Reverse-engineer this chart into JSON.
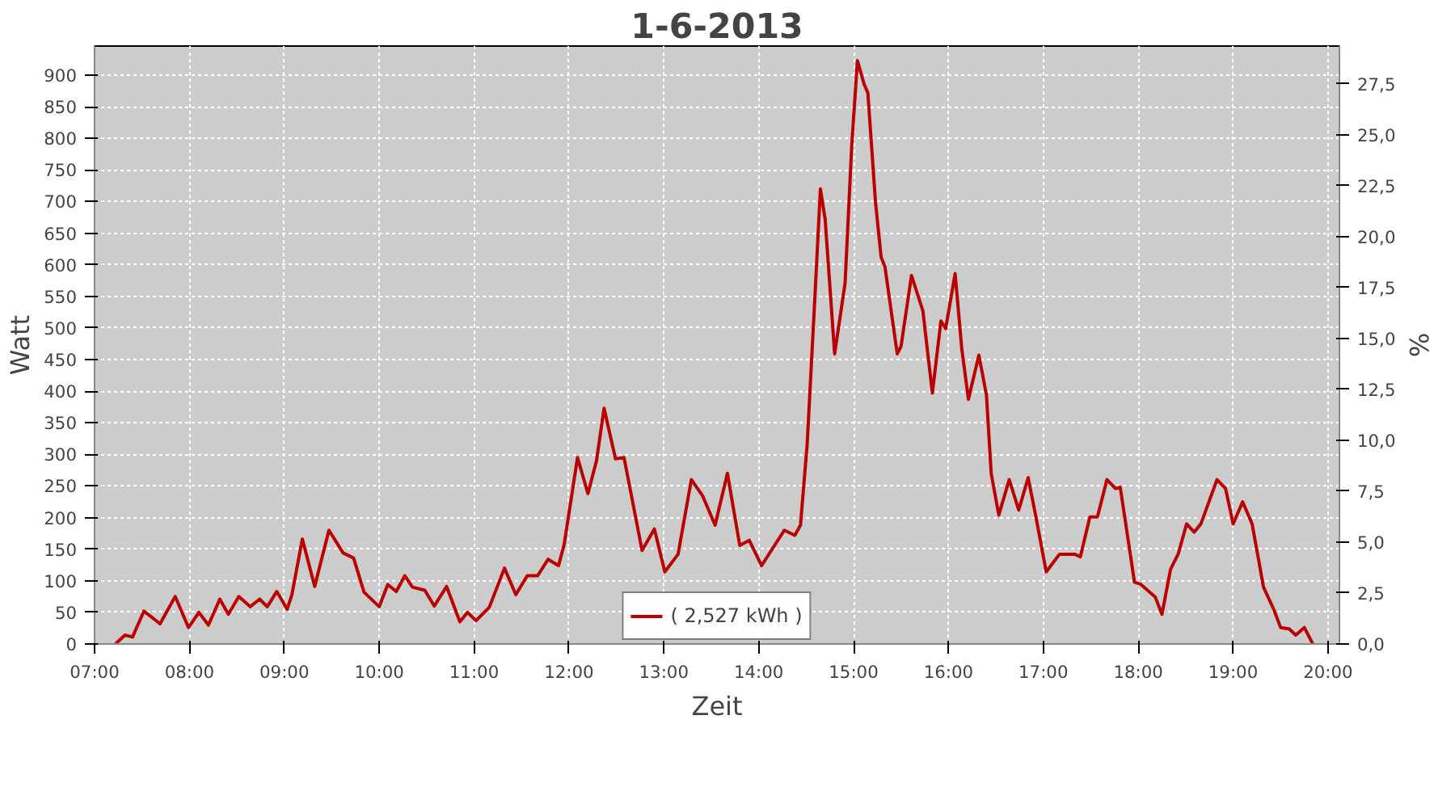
{
  "chart_data": {
    "type": "line",
    "title": "1-6-2013",
    "xlabel": "Zeit",
    "ylabel": "Watt",
    "y2label": "%",
    "x": [
      7.22,
      7.32,
      7.4,
      7.52,
      7.69,
      7.85,
      7.99,
      8.1,
      8.2,
      8.32,
      8.41,
      8.52,
      8.64,
      8.74,
      8.82,
      8.92,
      9.03,
      9.08,
      9.19,
      9.32,
      9.47,
      9.62,
      9.73,
      9.84,
      10.0,
      10.09,
      10.18,
      10.27,
      10.35,
      10.48,
      10.58,
      10.71,
      10.85,
      10.93,
      11.02,
      11.16,
      11.32,
      11.44,
      11.56,
      11.67,
      11.78,
      11.89,
      11.95,
      12.09,
      12.2,
      12.29,
      12.37,
      12.49,
      12.58,
      12.77,
      12.9,
      13.01,
      13.15,
      13.29,
      13.41,
      13.54,
      13.67,
      13.8,
      13.9,
      14.03,
      14.27,
      14.38,
      14.44,
      14.51,
      14.59,
      14.65,
      14.7,
      14.8,
      14.91,
      14.98,
      15.04,
      15.11,
      15.15,
      15.23,
      15.29,
      15.33,
      15.46,
      15.5,
      15.61,
      15.73,
      15.83,
      15.92,
      15.97,
      16.07,
      16.14,
      16.21,
      16.32,
      16.4,
      16.45,
      16.53,
      16.64,
      16.74,
      16.84,
      16.92,
      17.03,
      17.17,
      17.33,
      17.39,
      17.49,
      17.57,
      17.67,
      17.76,
      17.81,
      17.96,
      18.03,
      18.18,
      18.25,
      18.34,
      18.42,
      18.51,
      18.59,
      18.66,
      18.83,
      18.92,
      19.0,
      19.1,
      19.2,
      19.32,
      19.43,
      19.5,
      19.59,
      19.66,
      19.75,
      19.84
    ],
    "series": [
      {
        "name": "( 2,527 kWh )",
        "color": "#bb0000",
        "values": [
          0,
          14,
          11,
          52,
          32,
          75,
          26,
          50,
          30,
          71,
          47,
          75,
          59,
          71,
          59,
          83,
          55,
          78,
          166,
          91,
          180,
          144,
          136,
          82,
          59,
          94,
          83,
          108,
          90,
          85,
          60,
          91,
          35,
          50,
          37,
          58,
          120,
          78,
          108,
          108,
          134,
          124,
          158,
          295,
          238,
          290,
          373,
          293,
          295,
          148,
          182,
          114,
          142,
          260,
          234,
          188,
          270,
          156,
          164,
          124,
          180,
          172,
          188,
          315,
          543,
          720,
          672,
          459,
          571,
          788,
          923,
          886,
          872,
          700,
          612,
          597,
          459,
          471,
          583,
          527,
          397,
          511,
          499,
          586,
          467,
          387,
          457,
          394,
          270,
          204,
          260,
          212,
          263,
          202,
          114,
          142,
          142,
          138,
          201,
          201,
          260,
          246,
          248,
          98,
          94,
          74,
          47,
          118,
          142,
          190,
          177,
          190,
          260,
          246,
          190,
          225,
          190,
          90,
          54,
          26,
          24,
          14,
          26,
          0
        ]
      }
    ],
    "xlim": [
      7,
      20.12
    ],
    "ylim": [
      0,
      946
    ],
    "xticks": [
      {
        "value": 7,
        "label": "07:00"
      },
      {
        "value": 8,
        "label": "08:00"
      },
      {
        "value": 9,
        "label": "09:00"
      },
      {
        "value": 10,
        "label": "10:00"
      },
      {
        "value": 11,
        "label": "11:00"
      },
      {
        "value": 12,
        "label": "12:00"
      },
      {
        "value": 13,
        "label": "13:00"
      },
      {
        "value": 14,
        "label": "14:00"
      },
      {
        "value": 15,
        "label": "15:00"
      },
      {
        "value": 16,
        "label": "16:00"
      },
      {
        "value": 17,
        "label": "17:00"
      },
      {
        "value": 18,
        "label": "18:00"
      },
      {
        "value": 19,
        "label": "19:00"
      },
      {
        "value": 20,
        "label": "20:00"
      }
    ],
    "yticks": [
      0,
      50,
      100,
      150,
      200,
      250,
      300,
      350,
      400,
      450,
      500,
      550,
      600,
      650,
      700,
      750,
      800,
      850,
      900
    ],
    "y2lim": [
      0,
      29.36
    ],
    "y2ticks": [
      {
        "value": 0,
        "label": "0,0"
      },
      {
        "value": 2.5,
        "label": "2,5"
      },
      {
        "value": 5,
        "label": "5,0"
      },
      {
        "value": 7.5,
        "label": "7,5"
      },
      {
        "value": 10,
        "label": "10,0"
      },
      {
        "value": 12.5,
        "label": "12,5"
      },
      {
        "value": 15,
        "label": "15,0"
      },
      {
        "value": 17.5,
        "label": "17,5"
      },
      {
        "value": 20,
        "label": "20,0"
      },
      {
        "value": 22.5,
        "label": "22,5"
      },
      {
        "value": 25,
        "label": "25,0"
      },
      {
        "value": 27.5,
        "label": "27,5"
      }
    ],
    "grid": true,
    "legend": "bottom"
  }
}
